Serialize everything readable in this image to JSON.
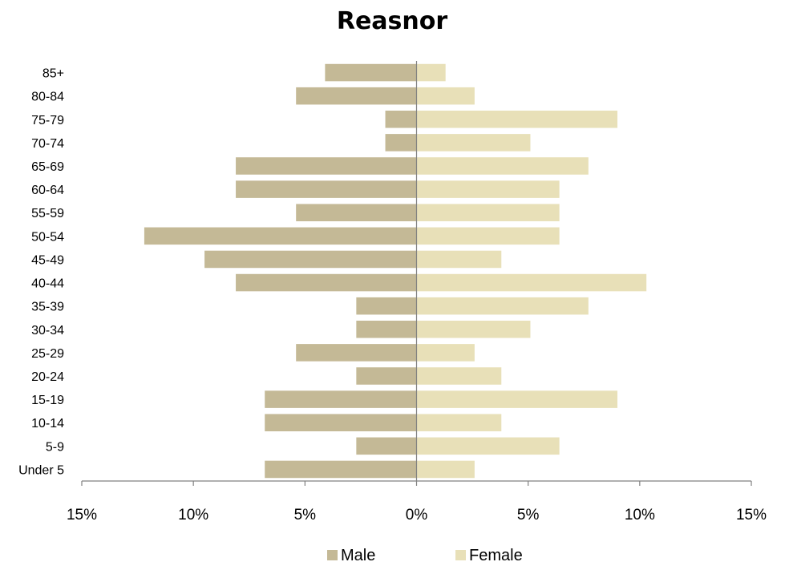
{
  "chart_data": {
    "type": "bar",
    "orientation": "horizontal",
    "title": "Reasnor",
    "categories": [
      "Under 5",
      "5-9",
      "10-14",
      "15-19",
      "20-24",
      "25-29",
      "30-34",
      "35-39",
      "40-44",
      "45-49",
      "50-54",
      "55-59",
      "60-64",
      "65-69",
      "70-74",
      "75-79",
      "80-84",
      "85+"
    ],
    "series": [
      {
        "name": "Male",
        "color": "#c4b996",
        "values": [
          6.8,
          2.7,
          6.8,
          6.8,
          2.7,
          5.4,
          2.7,
          2.7,
          8.1,
          9.5,
          12.2,
          5.4,
          8.1,
          8.1,
          1.4,
          1.4,
          5.4,
          4.1
        ]
      },
      {
        "name": "Female",
        "color": "#e8e0b8",
        "values": [
          2.6,
          6.4,
          3.8,
          9.0,
          3.8,
          2.6,
          5.1,
          7.7,
          10.3,
          3.8,
          6.4,
          6.4,
          6.4,
          7.7,
          5.1,
          9.0,
          2.6,
          1.3
        ]
      }
    ],
    "xlim": [
      -15,
      15
    ],
    "xticks": [
      -15,
      -10,
      -5,
      0,
      5,
      10,
      15
    ],
    "xtick_labels": [
      "15%",
      "10%",
      "5%",
      "0%",
      "5%",
      "10%",
      "15%"
    ],
    "grid": false,
    "legend_position": "bottom"
  }
}
